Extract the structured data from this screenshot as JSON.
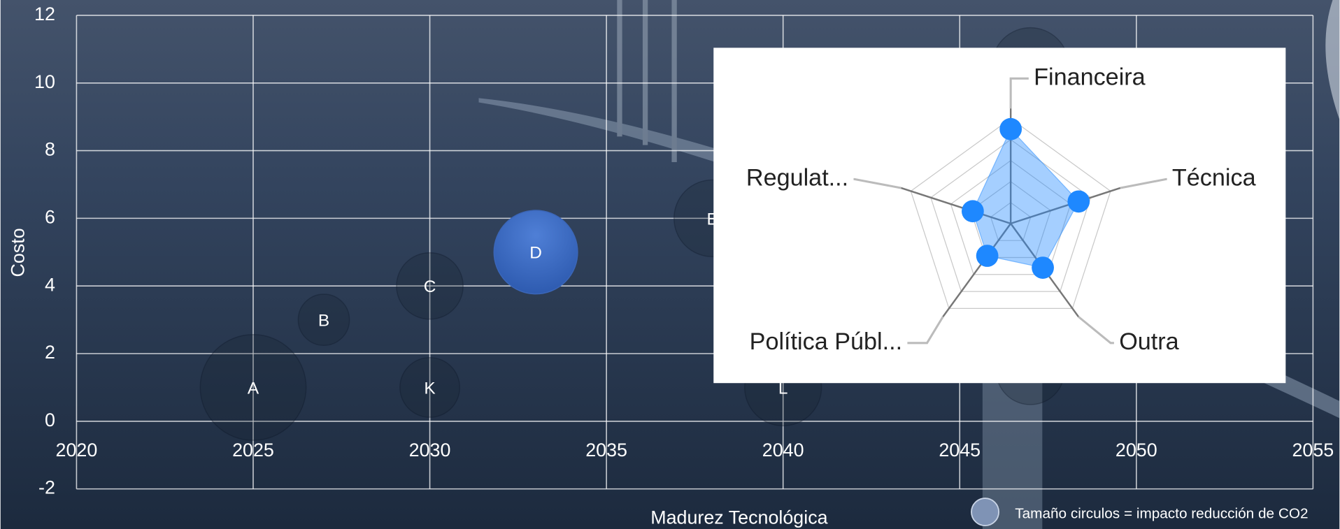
{
  "chart_data": [
    {
      "type": "bubble",
      "x_label": "Madurez Tecnológica",
      "y_label": "Costo",
      "annotation": "Tamaño circulos = impacto reducción de CO2",
      "labels": [
        "A",
        "B",
        "C",
        "D",
        "K",
        "E",
        "L",
        null,
        null
      ],
      "x": [
        2025,
        2027,
        2030,
        2033,
        2030,
        2038,
        2040,
        2047,
        2047
      ],
      "y": [
        1,
        3,
        4,
        5,
        1,
        6,
        1,
        10.5,
        1.5
      ],
      "sizes": [
        62,
        30,
        39,
        49,
        35,
        45,
        45,
        45,
        40
      ],
      "colors": [
        "rgba(20,30,45,0.25)",
        "rgba(20,30,45,0.25)",
        "rgba(20,30,45,0.25)",
        "#4472c4",
        "rgba(20,30,45,0.25)",
        "rgba(20,30,45,0.25)",
        "rgba(20,30,45,0.25)",
        "rgba(20,30,45,0.25)",
        "rgba(20,30,45,0.25)"
      ],
      "xlim": [
        2020,
        2055
      ],
      "xticks": [
        2020,
        2025,
        2030,
        2035,
        2040,
        2045,
        2050,
        2055
      ],
      "ylim": [
        -2,
        12
      ],
      "yticks": [
        -2,
        0,
        2,
        4,
        6,
        8,
        10,
        12
      ],
      "grid": true
    },
    {
      "type": "radar",
      "categories": [
        "Financeira",
        "Técnica",
        "Outra",
        "Política Públ...",
        "Regulat..."
      ],
      "values": [
        4.5,
        3.4,
        2.6,
        1.9,
        1.9
      ],
      "color": "#1e88ff",
      "rlim": [
        0,
        5
      ],
      "rticks": [
        1,
        2,
        3,
        4,
        5
      ]
    }
  ]
}
